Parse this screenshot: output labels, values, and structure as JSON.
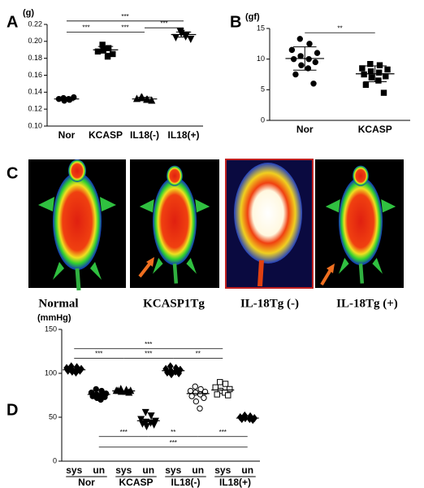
{
  "chart_data": [
    {
      "type": "dot",
      "panel": "A",
      "ylabel": "(g)",
      "categories": [
        "Nor",
        "KCASP",
        "IL18(-)",
        "IL18(+)"
      ],
      "markers": [
        "circle",
        "square",
        "triangle",
        "triangle-down"
      ],
      "points": [
        [
          0.133,
          0.131,
          0.132,
          0.134,
          0.13,
          0.132
        ],
        [
          0.196,
          0.192,
          0.188,
          0.185,
          0.19,
          0.182
        ],
        [
          0.134,
          0.131,
          0.132,
          0.13,
          0.133,
          0.131
        ],
        [
          0.212,
          0.208,
          0.205,
          0.203,
          0.21,
          0.206
        ]
      ],
      "means": [
        0.132,
        0.19,
        0.132,
        0.208
      ],
      "sd": [
        0.002,
        0.004,
        0.002,
        0.003
      ],
      "color": "#000000",
      "ylim": [
        0.1,
        0.22
      ],
      "yticks": [
        {
          "value": 0.1,
          "label": "0.10"
        },
        {
          "value": 0.12,
          "label": "0.12"
        },
        {
          "value": 0.14,
          "label": "0.14"
        },
        {
          "value": 0.16,
          "label": "0.16"
        },
        {
          "value": 0.18,
          "label": "0.18"
        },
        {
          "value": 0.2,
          "label": "0.20"
        },
        {
          "value": 0.22,
          "label": "0.22"
        }
      ],
      "brackets": [
        {
          "from": 0,
          "to": 3,
          "y": 0.224,
          "label": "***"
        },
        {
          "from": 0,
          "to": 1,
          "y": 0.211,
          "label": "***"
        },
        {
          "from": 1,
          "to": 2,
          "y": 0.211,
          "label": "***"
        },
        {
          "from": 2,
          "to": 3,
          "y": 0.216,
          "label": "***"
        }
      ]
    },
    {
      "type": "dot",
      "panel": "B",
      "ylabel": "(gf)",
      "categories": [
        "Nor",
        "KCASP"
      ],
      "markers": [
        "circle",
        "square"
      ],
      "points": [
        [
          13.3,
          12.5,
          11.5,
          11.0,
          10.5,
          10.0,
          10.0,
          9.5,
          9.0,
          8.5,
          7.5,
          6.0
        ],
        [
          9.2,
          9.0,
          8.5,
          8.3,
          8.0,
          7.8,
          7.5,
          7.2,
          7.0,
          6.5,
          5.8,
          4.5
        ]
      ],
      "means": [
        10.1,
        7.6
      ],
      "sd": [
        1.9,
        1.3
      ],
      "color": "#000000",
      "ylim": [
        0,
        15
      ],
      "yticks": [
        0,
        5,
        10,
        15
      ],
      "brackets": [
        {
          "from": 0,
          "to": 1,
          "y": 14.3,
          "label": "**"
        }
      ]
    },
    {
      "type": "dot",
      "panel": "D",
      "ylabel": "(mmHg)",
      "categories": [
        "sys",
        "un",
        "sys",
        "un",
        "sys",
        "un",
        "sys",
        "un"
      ],
      "group_labels": [
        "Nor",
        "KCASP",
        "IL18(-)",
        "IL18(+)"
      ],
      "markers": [
        "diamond",
        "circle",
        "triangle",
        "triangle-down",
        "diamond",
        "circle-open",
        "square-open",
        "diamond"
      ],
      "points": [
        [
          108,
          107,
          106,
          105,
          105,
          104,
          103,
          103,
          102,
          101
        ],
        [
          82,
          80,
          78,
          77,
          76,
          75,
          74,
          73,
          72,
          70
        ],
        [
          82,
          81,
          80,
          80,
          79,
          79,
          80,
          78
        ],
        [
          56,
          52,
          48,
          46,
          45,
          44,
          43,
          42,
          40
        ],
        [
          108,
          106,
          105,
          104,
          103,
          102,
          101,
          100,
          99
        ],
        [
          85,
          82,
          80,
          79,
          78,
          76,
          74,
          72,
          68,
          60
        ],
        [
          90,
          88,
          84,
          82,
          80,
          78,
          76,
          75
        ],
        [
          52,
          51,
          50,
          49,
          49,
          48,
          48,
          47
        ]
      ],
      "means": [
        104,
        76,
        80,
        46,
        103,
        77,
        81,
        49
      ],
      "color": "#000000",
      "ylim": [
        0,
        150
      ],
      "yticks": [
        0,
        50,
        100,
        150
      ],
      "brackets": [
        {
          "from": 0,
          "to": 6,
          "y": 128,
          "label": "***"
        },
        {
          "from": 0,
          "to": 2,
          "y": 117,
          "label": "***"
        },
        {
          "from": 2,
          "to": 4,
          "y": 117,
          "label": "***"
        },
        {
          "from": 4,
          "to": 6,
          "y": 117,
          "label": "**"
        },
        {
          "from": 1,
          "to": 3,
          "y": 28,
          "label": "***"
        },
        {
          "from": 3,
          "to": 5,
          "y": 28,
          "label": "**"
        },
        {
          "from": 5,
          "to": 7,
          "y": 28,
          "label": "***"
        },
        {
          "from": 1,
          "to": 7,
          "y": 16,
          "label": "***"
        }
      ]
    }
  ],
  "panel_c": {
    "panel": "C",
    "labels": [
      "Normal",
      "KCASP1Tg",
      "IL-18Tg (-)",
      "IL-18Tg (+)"
    ]
  }
}
